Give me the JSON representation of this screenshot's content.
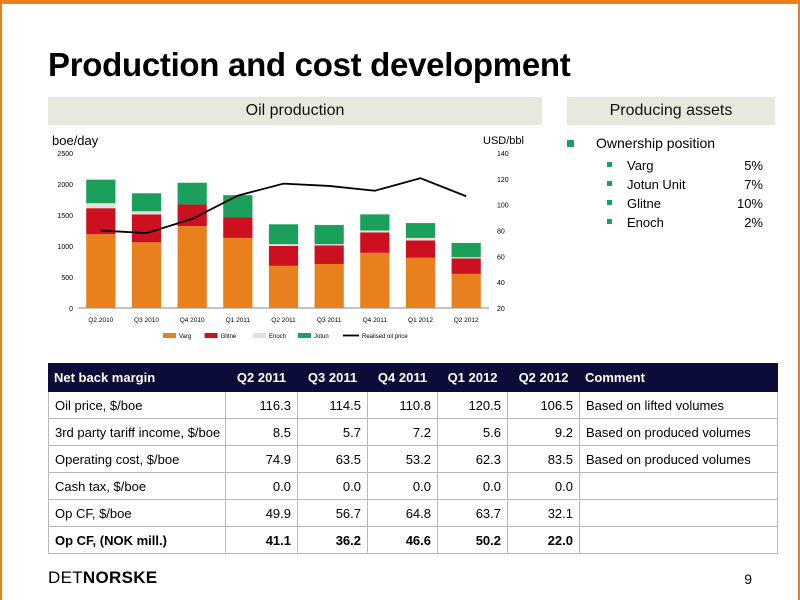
{
  "title": "Production and cost development",
  "sections": {
    "oil": "Oil production",
    "assets": "Producing assets"
  },
  "chart_data": {
    "type": "bar",
    "stacked": true,
    "ylabel_left": "boe/day",
    "ylabel_right": "USD/bbl",
    "ylim": [
      0,
      2500
    ],
    "yticks": [
      "0",
      "500",
      "1000",
      "1500",
      "2000",
      "2500"
    ],
    "y2lim": [
      20,
      140
    ],
    "y2ticks": [
      "20",
      "40",
      "60",
      "80",
      "100",
      "120",
      "140"
    ],
    "categories": [
      "Q2 2010",
      "Q3 2010",
      "Q4 2010",
      "Q1 2011",
      "Q2 2011",
      "Q3 2011",
      "Q4 2011",
      "Q1 2012",
      "Q2 2012"
    ],
    "series": [
      {
        "name": "Varg",
        "values": [
          1190,
          1060,
          1320,
          1130,
          680,
          710,
          890,
          810,
          550
        ],
        "color": "#e8801e"
      },
      {
        "name": "Glitne",
        "values": [
          420,
          450,
          350,
          330,
          320,
          300,
          330,
          280,
          250
        ],
        "color": "#cc1020"
      },
      {
        "name": "Enoch",
        "values": [
          80,
          50,
          0,
          0,
          30,
          20,
          30,
          40,
          20
        ],
        "color": "#e0e0e0"
      },
      {
        "name": "Jotun",
        "values": [
          380,
          290,
          350,
          360,
          320,
          310,
          260,
          240,
          230
        ],
        "color": "#1aa05a"
      }
    ],
    "line": {
      "name": "Realised oil price",
      "values": [
        80,
        78,
        89,
        107,
        116.3,
        114.5,
        110.8,
        120.5,
        106.5
      ],
      "color": "#000000"
    },
    "legend_position": "bottom"
  },
  "assets": {
    "heading": "Ownership position",
    "items": [
      {
        "name": "Varg",
        "pct": "5%"
      },
      {
        "name": "Jotun Unit",
        "pct": "7%"
      },
      {
        "name": "Glitne",
        "pct": "10%"
      },
      {
        "name": "Enoch",
        "pct": "2%"
      }
    ]
  },
  "table": {
    "headers": [
      "Net back margin",
      "Q2 2011",
      "Q3 2011",
      "Q4 2011",
      "Q1 2012",
      "Q2 2012",
      "Comment"
    ],
    "rows": [
      [
        "Oil price, $/boe",
        "116.3",
        "114.5",
        "110.8",
        "120.5",
        "106.5",
        "Based on lifted volumes"
      ],
      [
        "3rd party tariff income, $/boe",
        "8.5",
        "5.7",
        "7.2",
        "5.6",
        "9.2",
        "Based on produced volumes"
      ],
      [
        "Operating cost, $/boe",
        "74.9",
        "63.5",
        "53.2",
        "62.3",
        "83.5",
        "Based on produced volumes"
      ],
      [
        "Cash tax, $/boe",
        "0.0",
        "0.0",
        "0.0",
        "0.0",
        "0.0",
        ""
      ],
      [
        "Op CF, $/boe",
        "49.9",
        "56.7",
        "64.8",
        "63.7",
        "32.1",
        ""
      ],
      [
        "Op CF, (NOK mill.)",
        "41.1",
        "36.2",
        "46.6",
        "50.2",
        "22.0",
        ""
      ]
    ]
  },
  "footer": {
    "logo_light": "DET",
    "logo_bold": "NORSKE",
    "page": "9"
  }
}
